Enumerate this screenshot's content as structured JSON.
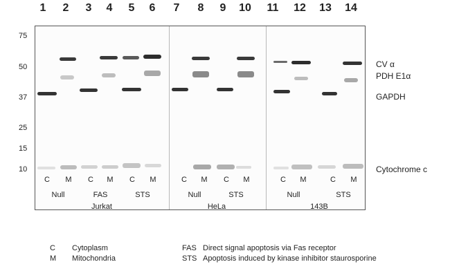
{
  "lanes": [
    "1",
    "2",
    "3",
    "4",
    "5",
    "6",
    "7",
    "8",
    "9",
    "10",
    "11",
    "12",
    "13",
    "14"
  ],
  "mw_markers": [
    "75",
    "50",
    "37",
    "25",
    "15",
    "10"
  ],
  "band_labels": {
    "cv": "CV α",
    "pdh": "PDH E1α",
    "gapdh": "GAPDH",
    "cytc": "Cytochrome c"
  },
  "fraction_labels": [
    "C",
    "M",
    "C",
    "M",
    "C",
    "M",
    "C",
    "M",
    "C",
    "M",
    "C",
    "M",
    "C",
    "M"
  ],
  "treatments": {
    "jurkat": [
      "Null",
      "FAS",
      "STS"
    ],
    "hela": [
      "Null",
      "STS"
    ],
    "b143": [
      "Null",
      "STS"
    ]
  },
  "cell_lines": {
    "jurkat": "Jurkat",
    "hela": "HeLa",
    "b143": "143B"
  },
  "legend": {
    "c_key": "C",
    "c_text": "Cytoplasm",
    "m_key": "M",
    "m_text": "Mitochondria",
    "fas_key": "FAS",
    "fas_text": "Direct signal apoptosis via Fas receptor",
    "sts_key": "STS",
    "sts_text": "Apoptosis induced by kinase inhibitor staurosporine"
  }
}
